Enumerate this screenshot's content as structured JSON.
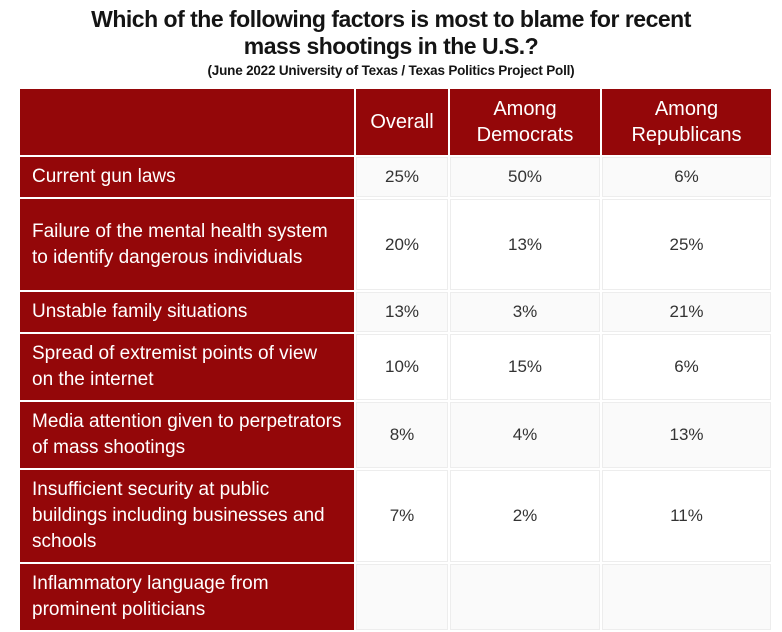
{
  "page": {
    "title_lines": [
      "Which of the following factors is most to blame for recent",
      "mass shootings in the U.S.?"
    ],
    "subtitle": "(June 2022 University of Texas / Texas Politics Project Poll)"
  },
  "colors": {
    "accent_maroon": "#940709",
    "header_text": "#ffffff",
    "row_stripe": "#fafafa",
    "cell_border": "#ededed",
    "title_text": "#141414",
    "value_text": "#333333"
  },
  "chart_data": {
    "type": "table",
    "title": "Which of the following factors is most to blame for recent mass shootings in the U.S.?",
    "subtitle": "(June 2022 University of Texas / Texas Politics Project Poll)",
    "columns": [
      "",
      "Overall",
      "Among Democrats",
      "Among Republicans"
    ],
    "rows": [
      {
        "factor": "Current gun laws",
        "overall": "25%",
        "democrats": "50%",
        "republicans": "6%",
        "lines": 1
      },
      {
        "factor": "Failure of the mental health system to identify dangerous individuals",
        "overall": "20%",
        "democrats": "13%",
        "republicans": "25%",
        "lines": 3
      },
      {
        "factor": "Unstable family situations",
        "overall": "13%",
        "democrats": "3%",
        "republicans": "21%",
        "lines": 1
      },
      {
        "factor": "Spread of extremist points of view on the internet",
        "overall": "10%",
        "democrats": "15%",
        "republicans": "6%",
        "lines": 2
      },
      {
        "factor": "Media attention given to perpetrators of mass shootings",
        "overall": "8%",
        "democrats": "4%",
        "republicans": "13%",
        "lines": 2
      },
      {
        "factor": "Insufficient security at public buildings including businesses and schools",
        "overall": "7%",
        "democrats": "2%",
        "republicans": "11%",
        "lines": 3
      },
      {
        "factor": "Inflammatory language from prominent politicians",
        "overall": "",
        "democrats": "",
        "republicans": "",
        "lines": 2,
        "clipped": true
      }
    ]
  }
}
